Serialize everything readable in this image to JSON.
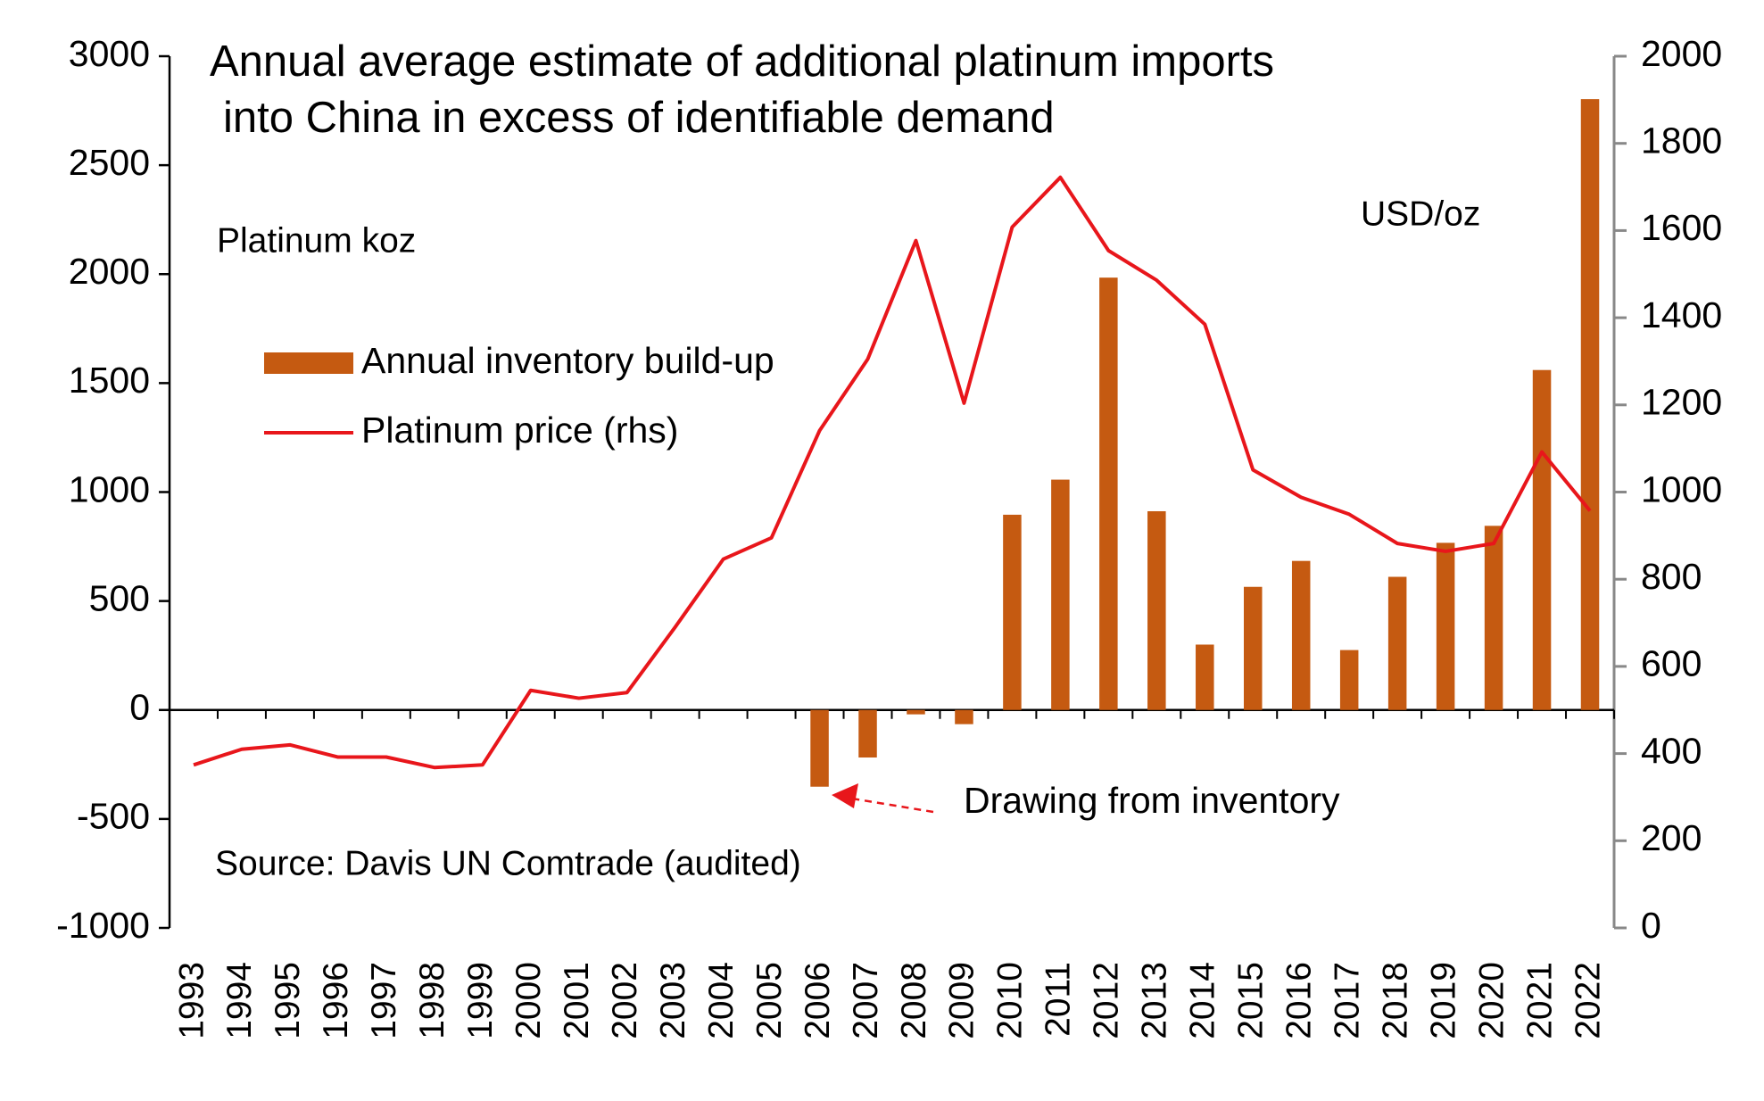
{
  "chart_data": {
    "type": "bar-line",
    "title": [
      "Annual average estimate of additional platinum imports",
      "into China in excess of identifiable demand"
    ],
    "y_label": "Platinum koz",
    "y2_label": "USD/oz",
    "source": "Source: Davis UN Comtrade (audited)",
    "annotation": "Drawing from inventory",
    "categories": [
      "1993",
      "1994",
      "1995",
      "1996",
      "1997",
      "1998",
      "1999",
      "2000",
      "2001",
      "2002",
      "2003",
      "2004",
      "2005",
      "2006",
      "2007",
      "2008",
      "2009",
      "2010",
      "2011",
      "2012",
      "2013",
      "2014",
      "2015",
      "2016",
      "2017",
      "2018",
      "2019",
      "2020",
      "2021",
      "2022"
    ],
    "series": [
      {
        "name": "Annual inventory build-up",
        "type": "bar",
        "color": "#c55a11",
        "values": [
          0,
          0,
          0,
          0,
          0,
          0,
          0,
          0,
          0,
          0,
          0,
          0,
          0,
          -352,
          -218,
          -20,
          -65,
          896,
          1057,
          1984,
          912,
          300,
          565,
          684,
          275,
          611,
          767,
          845,
          1560,
          2803
        ]
      },
      {
        "name": "Platinum price (rhs)",
        "type": "line",
        "axis": "y2",
        "color": "#e8161b",
        "values": [
          374,
          410,
          420,
          392,
          392,
          368,
          374,
          545,
          527,
          540,
          690,
          846,
          895,
          1141,
          1305,
          1577,
          1204,
          1608,
          1722,
          1554,
          1486,
          1385,
          1051,
          988,
          949,
          882,
          864,
          882,
          1092,
          957
        ]
      }
    ],
    "ylim": [
      -1000,
      3000
    ],
    "yticks": [
      -1000,
      -500,
      0,
      500,
      1000,
      1500,
      2000,
      2500,
      3000
    ],
    "y2lim": [
      0,
      2000
    ],
    "y2ticks": [
      0,
      200,
      400,
      600,
      800,
      1000,
      1200,
      1400,
      1600,
      1800,
      2000
    ],
    "grid": false
  }
}
